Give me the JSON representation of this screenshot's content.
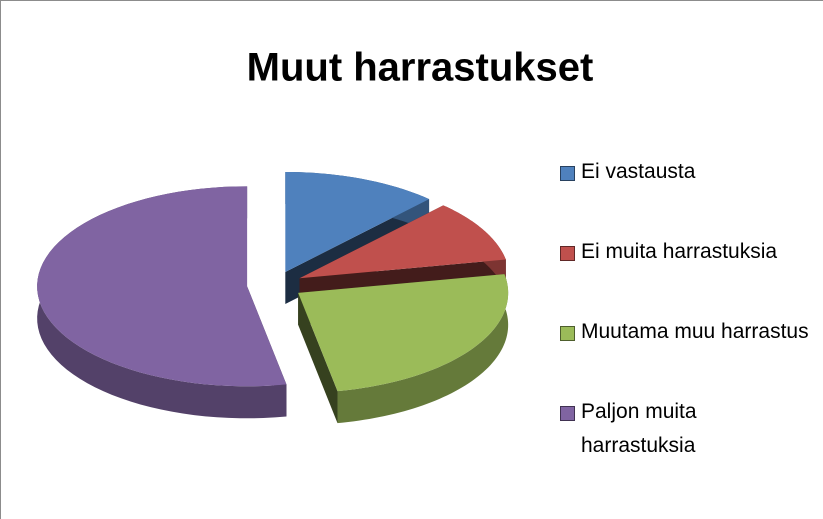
{
  "chart_data": {
    "type": "pie3d",
    "title": "Muut harrastukset",
    "categories": [
      "Ei vastausta",
      "Ei muita harrastuksia",
      "Muutama muu harrastus",
      "Paljon muita harrastuksia"
    ],
    "values": [
      12,
      10,
      25,
      53
    ],
    "colors": [
      "#4f81bd",
      "#c0504d",
      "#9bbb59",
      "#8064a2"
    ],
    "legend": "right"
  }
}
